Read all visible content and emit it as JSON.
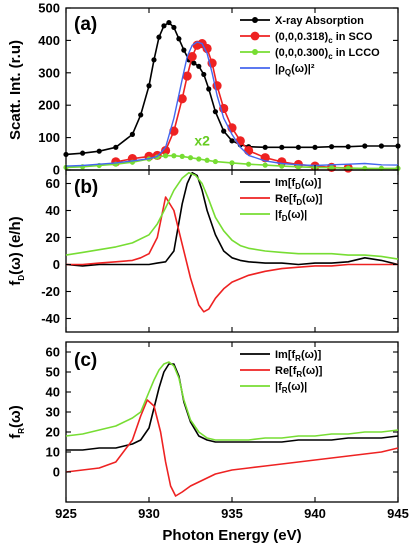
{
  "figure": {
    "xlabel": "Photon Energy (eV)",
    "xlim": [
      925,
      945
    ],
    "xticks": [
      "925",
      "930",
      "935",
      "940",
      "945"
    ]
  },
  "chart_data": [
    {
      "type": "line",
      "panel": "(a)",
      "ylabel": "Scatt. Int. (r.u)",
      "ylim": [
        0,
        500
      ],
      "yticks": [
        "0",
        "100",
        "200",
        "300",
        "400",
        "500"
      ],
      "annotation": {
        "text": "x2",
        "color": "#66cc22",
        "x": 933.2,
        "y": 75
      },
      "legend_position": "top-right",
      "series": [
        {
          "key": "xas",
          "legend": {
            "main": "X-ray Absorption"
          },
          "color": "#000000",
          "marker": "circle",
          "line": true,
          "x": [
            925,
            926,
            927,
            928,
            929,
            929.5,
            930,
            930.3,
            930.6,
            930.9,
            931.2,
            931.5,
            931.8,
            932.1,
            932.4,
            932.7,
            933,
            933.3,
            933.6,
            934,
            934.5,
            935,
            935.5,
            936,
            937,
            938,
            939,
            940,
            941,
            942,
            943,
            944,
            945
          ],
          "y": [
            48,
            52,
            58,
            70,
            110,
            170,
            260,
            340,
            410,
            445,
            455,
            440,
            405,
            370,
            340,
            330,
            320,
            295,
            250,
            180,
            120,
            90,
            78,
            72,
            70,
            70,
            70,
            70,
            72,
            72,
            74,
            74,
            74
          ]
        },
        {
          "key": "sco",
          "legend": {
            "main": "(0,0,0.318)",
            "sub": "c",
            "tail": " in SCO"
          },
          "color": "#ee2222",
          "marker": "circle-large",
          "line": true,
          "x": [
            928,
            929,
            930,
            930.5,
            931,
            931.5,
            932,
            932.3,
            932.6,
            932.9,
            933.2,
            933.5,
            933.8,
            934.1,
            934.5,
            935,
            935.5,
            936,
            937,
            938,
            939,
            940,
            941,
            942
          ],
          "y": [
            25,
            35,
            42,
            45,
            60,
            120,
            220,
            290,
            350,
            385,
            390,
            375,
            330,
            260,
            190,
            130,
            90,
            60,
            38,
            25,
            17,
            12,
            8,
            6
          ]
        },
        {
          "key": "lcco",
          "legend": {
            "main": "(0,0,0.300)",
            "sub": "c",
            "tail": " in LCCO"
          },
          "color": "#77dd33",
          "marker": "circle",
          "line": true,
          "x": [
            925,
            926,
            927,
            928,
            929,
            930,
            930.5,
            931,
            931.5,
            932,
            932.5,
            933,
            933.5,
            934,
            935,
            936,
            937,
            938,
            939,
            940,
            941,
            942,
            943,
            944,
            945
          ],
          "y": [
            8,
            10,
            14,
            18,
            24,
            34,
            40,
            44,
            44,
            42,
            38,
            34,
            30,
            26,
            22,
            18,
            15,
            12,
            10,
            8,
            7,
            6,
            5,
            5,
            5
          ]
        },
        {
          "key": "rho",
          "legend": {
            "main": "|ρ",
            "sub": "Q",
            "tail": "(ω)|²"
          },
          "color": "#4466ee",
          "marker": "none",
          "line": true,
          "x": [
            925,
            926,
            927,
            928,
            929,
            930,
            930.5,
            931,
            931.5,
            932,
            932.3,
            932.6,
            932.9,
            933.2,
            933.5,
            933.8,
            934.1,
            934.5,
            935,
            935.5,
            936,
            937,
            938,
            939,
            940,
            941,
            942,
            943,
            944,
            945
          ],
          "y": [
            12,
            14,
            18,
            22,
            28,
            35,
            42,
            70,
            160,
            280,
            350,
            385,
            395,
            390,
            360,
            300,
            230,
            160,
            110,
            70,
            45,
            28,
            20,
            16,
            14,
            16,
            18,
            20,
            16,
            15
          ]
        }
      ]
    },
    {
      "type": "line",
      "panel": "(b)",
      "ylabel": "f",
      "ylabel_sub": "D",
      "ylabel_tail": "(ω) (e/h)",
      "ylim": [
        -50,
        70
      ],
      "yticks": [
        "-40",
        "-20",
        "0",
        "20",
        "40",
        "60"
      ],
      "yticks_values": [
        -40,
        -20,
        0,
        20,
        40,
        60
      ],
      "legend_position": "top-right",
      "series": [
        {
          "key": "im",
          "legend": {
            "main": "Im[f",
            "sub": "D",
            "tail": "(ω)]"
          },
          "color": "#000000",
          "x": [
            925,
            926,
            927,
            928,
            929,
            930,
            930.5,
            931,
            931.5,
            932,
            932.3,
            932.6,
            932.9,
            933.2,
            933.5,
            934,
            934.5,
            935,
            935.5,
            936,
            937,
            938,
            939,
            940,
            941,
            942,
            943,
            944,
            945
          ],
          "y": [
            0,
            -1,
            0,
            0,
            0,
            0,
            1,
            2,
            10,
            45,
            60,
            68,
            66,
            55,
            40,
            22,
            10,
            5,
            3,
            2,
            1,
            1,
            0,
            1,
            1,
            2,
            5,
            3,
            0
          ]
        },
        {
          "key": "re",
          "legend": {
            "main": "Re[f",
            "sub": "D",
            "tail": "(ω)]"
          },
          "color": "#ee2222",
          "x": [
            925,
            926,
            927,
            928,
            929,
            929.5,
            930,
            930.5,
            931,
            931.5,
            932,
            932.5,
            933,
            933.3,
            933.6,
            934,
            934.5,
            935,
            936,
            937,
            938,
            939,
            940,
            941,
            942,
            943,
            944,
            945
          ],
          "y": [
            0,
            0,
            1,
            2,
            3,
            5,
            8,
            20,
            50,
            40,
            15,
            -10,
            -30,
            -35,
            -33,
            -25,
            -18,
            -13,
            -8,
            -5,
            -3,
            -2,
            -1,
            -1,
            0,
            0,
            0,
            0
          ]
        },
        {
          "key": "abs",
          "legend": {
            "main": "|f",
            "sub": "D",
            "tail": "(ω)|"
          },
          "color": "#77dd33",
          "x": [
            925,
            926,
            927,
            928,
            929,
            930,
            930.5,
            931,
            931.5,
            932,
            932.4,
            932.8,
            933.2,
            933.6,
            934,
            934.5,
            935,
            935.5,
            936,
            937,
            938,
            939,
            940,
            941,
            942,
            943,
            944,
            945
          ],
          "y": [
            7,
            9,
            11,
            13,
            16,
            22,
            30,
            42,
            55,
            64,
            68,
            66,
            60,
            48,
            35,
            25,
            18,
            14,
            12,
            10,
            9,
            8,
            8,
            8,
            7,
            7,
            6,
            4
          ]
        }
      ]
    },
    {
      "type": "line",
      "panel": "(c)",
      "ylabel": "f",
      "ylabel_sub": "R",
      "ylabel_tail": "(ω)",
      "ylim": [
        -15,
        65
      ],
      "yticks": [
        "0",
        "10",
        "20",
        "30",
        "40",
        "50",
        "60"
      ],
      "yticks_values": [
        0,
        10,
        20,
        30,
        40,
        50,
        60
      ],
      "legend_position": "top-right",
      "series": [
        {
          "key": "im",
          "legend": {
            "main": "Im[f",
            "sub": "R",
            "tail": "(ω)]"
          },
          "color": "#000000",
          "x": [
            925,
            926,
            927,
            928,
            929,
            929.5,
            930,
            930.3,
            930.6,
            930.9,
            931.2,
            931.5,
            931.8,
            932.1,
            932.5,
            933,
            933.5,
            934,
            935,
            936,
            937,
            938,
            939,
            940,
            941,
            942,
            943,
            944,
            945
          ],
          "y": [
            11,
            11,
            12,
            12,
            14,
            16,
            22,
            32,
            42,
            50,
            54,
            54,
            48,
            35,
            25,
            18,
            16,
            15,
            15,
            15,
            15,
            15,
            16,
            16,
            16,
            17,
            17,
            17,
            18
          ]
        },
        {
          "key": "re",
          "legend": {
            "main": "Re[f",
            "sub": "R",
            "tail": "(ω)]"
          },
          "color": "#ee2222",
          "x": [
            925,
            926,
            927,
            928,
            929,
            929.5,
            929.9,
            930.3,
            930.7,
            931,
            931.3,
            931.6,
            932,
            932.5,
            933,
            933.5,
            934,
            935,
            936,
            937,
            938,
            939,
            940,
            941,
            942,
            943,
            944,
            945
          ],
          "y": [
            0,
            1,
            2,
            5,
            16,
            28,
            36,
            33,
            20,
            5,
            -7,
            -12,
            -10,
            -7,
            -5,
            -3,
            -1,
            1,
            2,
            3,
            4,
            5,
            6,
            7,
            8,
            9,
            10,
            12
          ]
        },
        {
          "key": "abs",
          "legend": {
            "main": "|f",
            "sub": "R",
            "tail": "(ω)|"
          },
          "color": "#77dd33",
          "x": [
            925,
            926,
            927,
            928,
            929,
            929.5,
            930,
            930.3,
            930.6,
            930.9,
            931.2,
            931.5,
            931.8,
            932.1,
            932.5,
            933,
            933.5,
            934,
            935,
            936,
            937,
            938,
            939,
            940,
            941,
            942,
            943,
            944,
            945
          ],
          "y": [
            18,
            19,
            21,
            23,
            27,
            30,
            40,
            46,
            51,
            54,
            55,
            53,
            47,
            36,
            26,
            20,
            17,
            16,
            16,
            16,
            17,
            17,
            18,
            18,
            19,
            19,
            20,
            20,
            21
          ]
        }
      ]
    }
  ]
}
